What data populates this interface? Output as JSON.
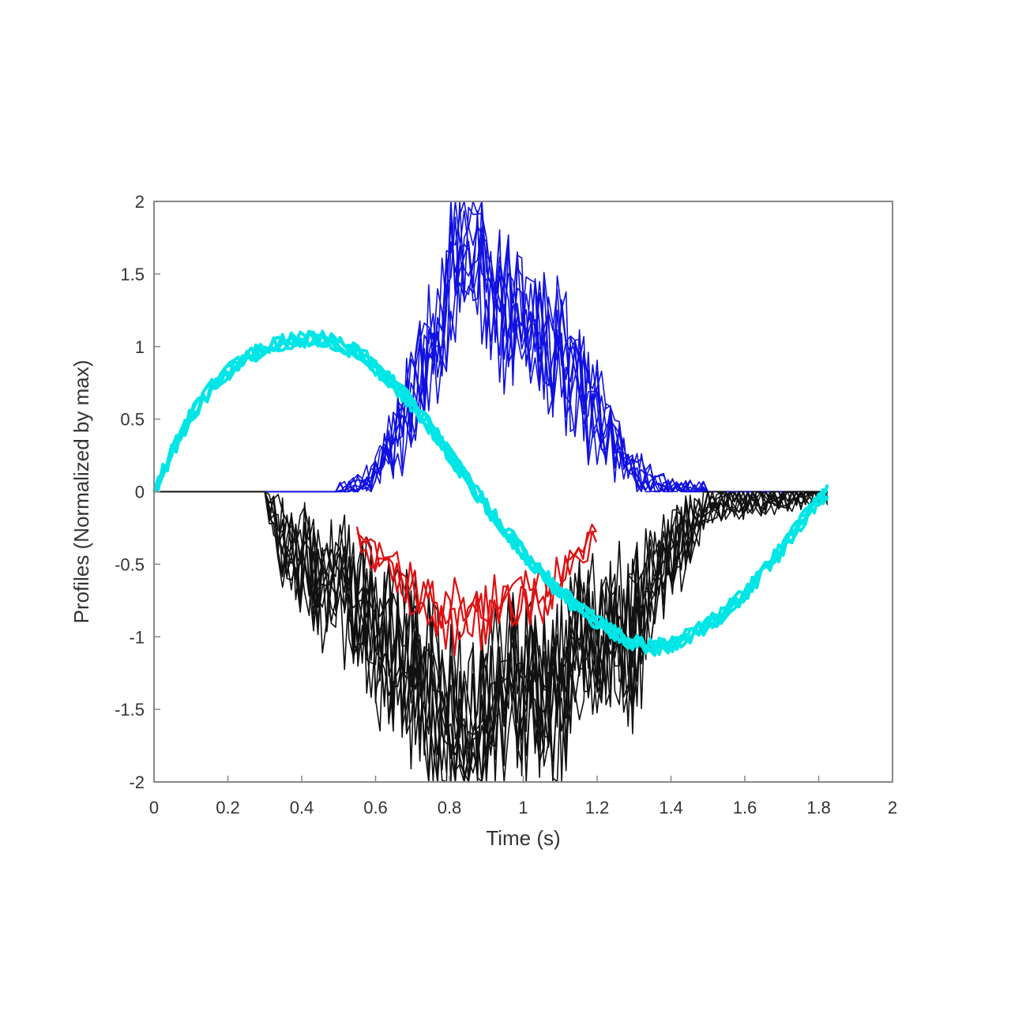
{
  "chart_data": {
    "type": "line",
    "title": "",
    "xlabel": "Time (s)",
    "ylabel": "Profiles (Normalized by max)",
    "xlim": [
      0,
      2
    ],
    "ylim": [
      -2,
      2
    ],
    "xticks": [
      "0",
      "0.2",
      "0.4",
      "0.6",
      "0.8",
      "1",
      "1.2",
      "1.4",
      "1.6",
      "1.8",
      "2"
    ],
    "yticks": [
      "-2",
      "-1.5",
      "-1",
      "-0.5",
      "0",
      "0.5",
      "1",
      "1.5",
      "2"
    ],
    "grid": false,
    "legend": "none",
    "series": [
      {
        "color": "#00e5e5",
        "x": [
          0,
          0.05,
          0.1,
          0.15,
          0.2,
          0.25,
          0.3,
          0.35,
          0.4,
          0.45,
          0.5,
          0.55,
          0.6,
          0.65,
          0.7,
          0.75,
          0.8,
          0.85,
          0.9,
          0.95,
          1.0,
          1.05,
          1.1,
          1.15,
          1.2,
          1.25,
          1.3,
          1.35,
          1.4,
          1.45,
          1.5,
          1.55,
          1.6,
          1.65,
          1.7,
          1.75,
          1.8,
          1.83
        ],
        "y": [
          0,
          0.28,
          0.52,
          0.7,
          0.82,
          0.92,
          0.98,
          1.03,
          1.05,
          1.05,
          1.02,
          0.96,
          0.86,
          0.74,
          0.6,
          0.44,
          0.26,
          0.08,
          -0.1,
          -0.26,
          -0.42,
          -0.56,
          -0.7,
          -0.8,
          -0.9,
          -0.98,
          -1.04,
          -1.07,
          -1.05,
          -1.0,
          -0.92,
          -0.82,
          -0.7,
          -0.55,
          -0.4,
          -0.22,
          -0.05,
          0
        ]
      },
      {
        "color": "#1010e0",
        "x": [
          0,
          0.5,
          0.55,
          0.6,
          0.65,
          0.7,
          0.75,
          0.8,
          0.85,
          0.9,
          0.95,
          1.0,
          1.05,
          1.1,
          1.15,
          1.2,
          1.25,
          1.3,
          1.35,
          1.4,
          1.45,
          1.5,
          1.83
        ],
        "y": [
          0,
          0,
          0.05,
          0.15,
          0.4,
          0.75,
          1.1,
          1.55,
          2.0,
          1.7,
          1.5,
          1.35,
          1.2,
          1.1,
          0.85,
          0.6,
          0.35,
          0.18,
          0.08,
          0.03,
          0.01,
          0,
          0
        ]
      },
      {
        "color": "#111111",
        "x": [
          0,
          0.3,
          0.35,
          0.4,
          0.45,
          0.5,
          0.55,
          0.6,
          0.65,
          0.7,
          0.75,
          0.8,
          0.85,
          0.9,
          0.95,
          1.0,
          1.05,
          1.1,
          1.15,
          1.2,
          1.25,
          1.3,
          1.35,
          1.4,
          1.45,
          1.5,
          1.83
        ],
        "y": [
          0,
          0,
          -0.4,
          -0.55,
          -0.75,
          -0.7,
          -0.9,
          -1.1,
          -1.3,
          -1.45,
          -1.6,
          -1.75,
          -1.95,
          -1.7,
          -1.5,
          -1.6,
          -1.5,
          -1.65,
          -1.3,
          -1.2,
          -1.0,
          -1.2,
          -0.7,
          -0.5,
          -0.3,
          -0.1,
          0
        ]
      },
      {
        "color": "#dd1111",
        "x": [
          0.55,
          0.6,
          0.65,
          0.7,
          0.75,
          0.8,
          0.85,
          0.9,
          0.95,
          1.0,
          1.05,
          1.1,
          1.15,
          1.2
        ],
        "y": [
          -0.3,
          -0.5,
          -0.65,
          -0.78,
          -0.9,
          -0.98,
          -1.0,
          -0.98,
          -0.92,
          -0.85,
          -0.78,
          -0.65,
          -0.5,
          -0.35
        ]
      }
    ]
  }
}
